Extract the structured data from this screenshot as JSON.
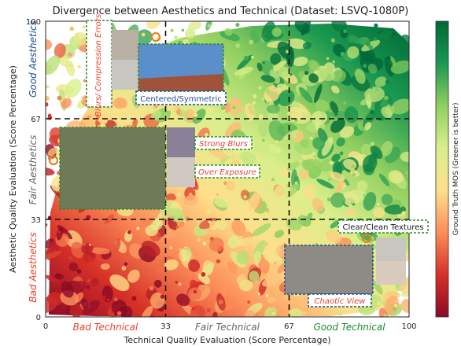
{
  "chart_data": {
    "type": "heatmap",
    "title": "Divergence between Aesthetics and Technical (Dataset: LSVQ-1080P)",
    "xlabel": "Technical Quality Evaluation (Score Percentage)",
    "ylabel": "Aesthetic Quality Evaluation (Score Percentage)",
    "xlim": [
      0,
      100
    ],
    "ylim": [
      0,
      100
    ],
    "x_ticks": [
      "0",
      "33",
      "67",
      "100"
    ],
    "y_ticks": [
      "0",
      "33",
      "67",
      "100"
    ],
    "thresholds": [
      33,
      67
    ],
    "x_categories": [
      "Bad Technical",
      "Fair Technical",
      "Good Technical"
    ],
    "y_categories": [
      "Bad Aesthetics",
      "Fair Aesthetics",
      "Good Aesthetics"
    ],
    "colorbar_label": "Ground Truth MOS (Greener is better)",
    "colormap": [
      "#8b0a26",
      "#d73027",
      "#fc8d59",
      "#fee08b",
      "#d9ef8b",
      "#91cf60",
      "#1a9850",
      "#006837"
    ],
    "annotations": [
      {
        "text": "Blurs/ Compression Errors",
        "color": "#e8412c",
        "border": "#2e8b2e",
        "marker": {
          "x": 31,
          "y": 94
        }
      },
      {
        "text": "Centered/Symmetric",
        "color": "#1f4e8c",
        "border": "#2e8b2e"
      },
      {
        "text": "Strong Blurs",
        "color": "#e8412c",
        "border": "#2e8b2e"
      },
      {
        "text": "Over Exposure",
        "color": "#e8412c",
        "border": "#2e8b2e",
        "marker": {
          "x": 2,
          "y": 53
        }
      },
      {
        "text": "Clear/Clean Textures",
        "color": "#1a1a1a",
        "border": "#2e8b2e",
        "marker": {
          "x": 93,
          "y": 17
        }
      },
      {
        "text": "Chaotic View",
        "color": "#e8412c",
        "border": "#1f4e8c"
      }
    ]
  }
}
